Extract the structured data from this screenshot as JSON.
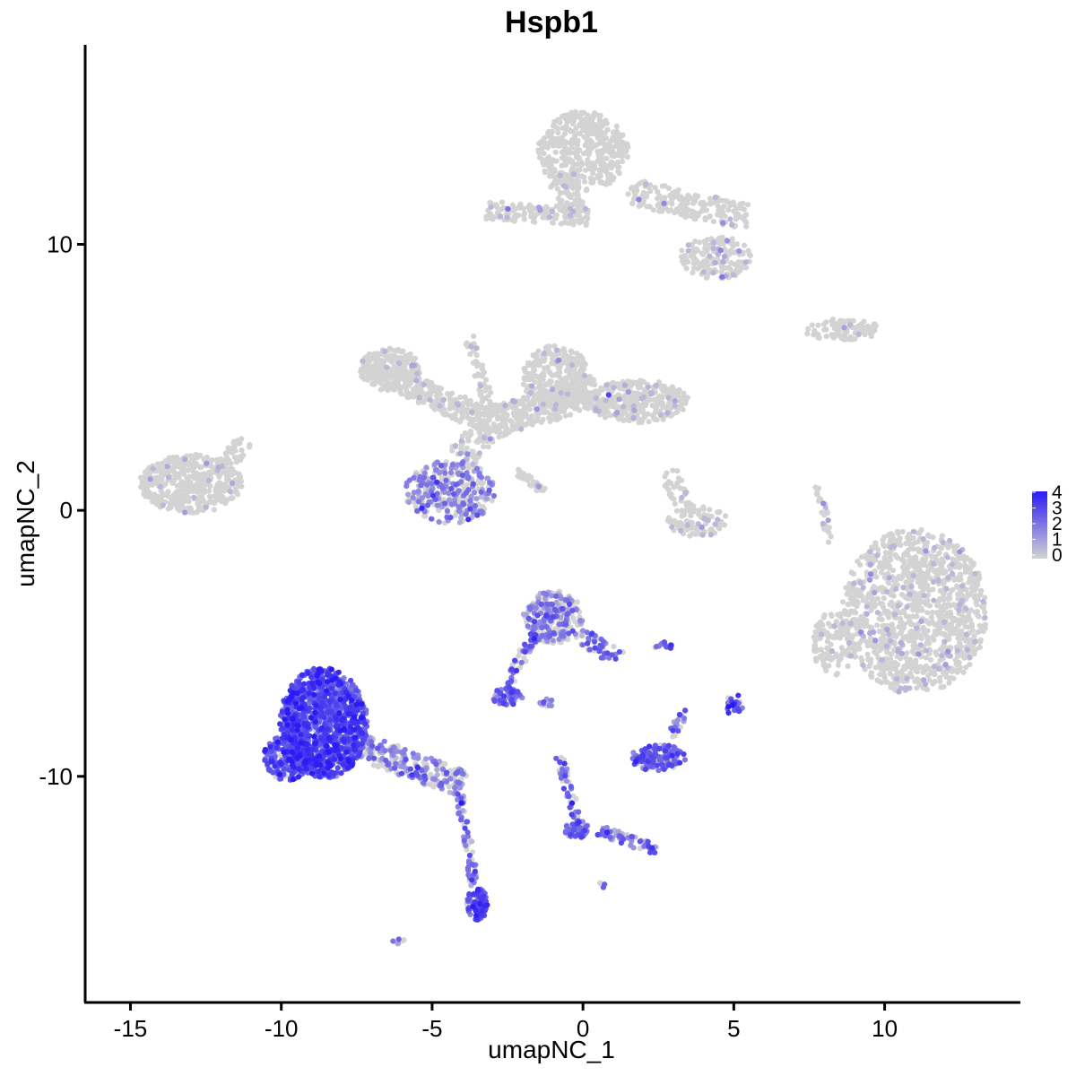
{
  "chart_data": {
    "type": "scatter",
    "title": "Hspb1",
    "xlabel": "umapNC_1",
    "ylabel": "umapNC_2",
    "xlim": [
      -16.5,
      14.5
    ],
    "ylim": [
      -18.5,
      17.5
    ],
    "x_ticks": [
      -15,
      -10,
      -5,
      0,
      5,
      10
    ],
    "x_tick_labels": [
      "-15",
      "-10",
      "-5",
      "0",
      "5",
      "10"
    ],
    "y_ticks": [
      -10,
      0,
      10
    ],
    "y_tick_labels": [
      "-10",
      "0",
      "10"
    ],
    "grid": false,
    "legend": {
      "position": "right",
      "type": "colorbar",
      "labels": [
        "4",
        "3",
        "2",
        "1",
        "0"
      ],
      "range": [
        0,
        4
      ],
      "low_color": "#d3d3d3",
      "high_color": "#2a1af5"
    },
    "clusters": [
      {
        "shape": "ellipse",
        "cx": -13.0,
        "cy": 1.0,
        "rx": 1.7,
        "ry": 1.1,
        "n": 420,
        "expr": 0.04
      },
      {
        "shape": "line",
        "x1": -12.0,
        "y1": 1.5,
        "x2": -11.2,
        "y2": 2.6,
        "width": 0.3,
        "n": 50,
        "expr": 0.02
      },
      {
        "shape": "ellipse",
        "cx": -6.4,
        "cy": 5.3,
        "rx": 1.0,
        "ry": 0.8,
        "n": 220,
        "expr": 0.05
      },
      {
        "shape": "line",
        "x1": -6.4,
        "y1": 5.0,
        "x2": -3.0,
        "y2": 3.3,
        "width": 0.45,
        "n": 250,
        "expr": 0.03
      },
      {
        "shape": "line",
        "x1": -3.0,
        "y1": 3.3,
        "x2": 0.5,
        "y2": 4.5,
        "width": 0.6,
        "n": 260,
        "expr": 0.03
      },
      {
        "shape": "ellipse",
        "cx": -0.9,
        "cy": 5.0,
        "rx": 1.1,
        "ry": 1.2,
        "n": 300,
        "expr": 0.05
      },
      {
        "shape": "ellipse",
        "cx": 1.8,
        "cy": 4.1,
        "rx": 1.7,
        "ry": 0.8,
        "n": 320,
        "expr": 0.08
      },
      {
        "shape": "line",
        "x1": -3.8,
        "y1": 6.5,
        "x2": -3.0,
        "y2": 3.5,
        "width": 0.2,
        "n": 60,
        "expr": 0.04
      },
      {
        "shape": "ellipse",
        "cx": -4.4,
        "cy": 0.7,
        "rx": 1.5,
        "ry": 1.2,
        "n": 320,
        "expr": 0.55
      },
      {
        "shape": "line",
        "x1": -4.0,
        "y1": 2.0,
        "x2": -3.1,
        "y2": 3.3,
        "width": 0.5,
        "n": 80,
        "expr": 0.15
      },
      {
        "shape": "line",
        "x1": -2.2,
        "y1": 1.5,
        "x2": -1.3,
        "y2": 0.7,
        "width": 0.15,
        "n": 30,
        "expr": 0.1
      },
      {
        "shape": "ellipse",
        "cx": 0.0,
        "cy": 13.5,
        "rx": 1.5,
        "ry": 1.5,
        "n": 420,
        "expr": 0.01
      },
      {
        "shape": "line",
        "x1": -0.8,
        "y1": 12.5,
        "x2": -0.1,
        "y2": 10.9,
        "width": 0.4,
        "n": 90,
        "expr": 0.02
      },
      {
        "shape": "line",
        "x1": -3.2,
        "y1": 11.3,
        "x2": 0.2,
        "y2": 11.0,
        "width": 0.35,
        "n": 140,
        "expr": 0.05
      },
      {
        "shape": "ellipse",
        "cx": 4.4,
        "cy": 9.5,
        "rx": 1.2,
        "ry": 0.8,
        "n": 160,
        "expr": 0.12
      },
      {
        "shape": "line",
        "x1": 1.5,
        "y1": 12.0,
        "x2": 5.5,
        "y2": 11.0,
        "width": 0.5,
        "n": 200,
        "expr": 0.04
      },
      {
        "shape": "ellipse",
        "cx": 8.6,
        "cy": 6.8,
        "rx": 1.3,
        "ry": 0.4,
        "n": 90,
        "expr": 0.05
      },
      {
        "shape": "ellipse",
        "cx": 3.8,
        "cy": -0.4,
        "rx": 1.0,
        "ry": 0.6,
        "n": 90,
        "expr": 0.12
      },
      {
        "shape": "line",
        "x1": 2.8,
        "y1": 1.5,
        "x2": 3.5,
        "y2": -0.2,
        "width": 0.3,
        "n": 40,
        "expr": 0.05
      },
      {
        "shape": "ellipse",
        "cx": 11.0,
        "cy": -3.8,
        "rx": 2.4,
        "ry": 3.1,
        "n": 1150,
        "expr": 0.08
      },
      {
        "shape": "ellipse",
        "cx": 8.3,
        "cy": -5.0,
        "rx": 0.7,
        "ry": 1.2,
        "n": 120,
        "expr": 0.05
      },
      {
        "shape": "line",
        "x1": 7.8,
        "y1": 0.9,
        "x2": 8.2,
        "y2": -1.2,
        "width": 0.12,
        "n": 25,
        "expr": 0.2
      },
      {
        "shape": "ellipse",
        "cx": -8.6,
        "cy": -8.0,
        "rx": 1.45,
        "ry": 2.1,
        "n": 1100,
        "expr": 0.92
      },
      {
        "shape": "ellipse",
        "cx": -9.8,
        "cy": -9.3,
        "rx": 0.8,
        "ry": 0.85,
        "n": 220,
        "expr": 0.9
      },
      {
        "shape": "line",
        "x1": -7.5,
        "y1": -8.8,
        "x2": -4.0,
        "y2": -10.3,
        "width": 0.5,
        "n": 240,
        "expr": 0.55
      },
      {
        "shape": "line",
        "x1": -4.1,
        "y1": -10.6,
        "x2": -3.6,
        "y2": -14.1,
        "width": 0.15,
        "n": 70,
        "expr": 0.7
      },
      {
        "shape": "ellipse",
        "cx": -3.5,
        "cy": -14.8,
        "rx": 0.35,
        "ry": 0.6,
        "n": 90,
        "expr": 0.9
      },
      {
        "shape": "ellipse",
        "cx": -1.0,
        "cy": -4.0,
        "rx": 1.0,
        "ry": 1.0,
        "n": 260,
        "expr": 0.55
      },
      {
        "shape": "line",
        "x1": -0.4,
        "y1": -4.5,
        "x2": 1.2,
        "y2": -5.6,
        "width": 0.3,
        "n": 50,
        "expr": 0.7
      },
      {
        "shape": "line",
        "x1": -1.6,
        "y1": -4.6,
        "x2": -2.5,
        "y2": -6.6,
        "width": 0.18,
        "n": 50,
        "expr": 0.7
      },
      {
        "shape": "ellipse",
        "cx": -2.5,
        "cy": -7.0,
        "rx": 0.5,
        "ry": 0.35,
        "n": 80,
        "expr": 0.75
      },
      {
        "shape": "ellipse",
        "cx": -1.2,
        "cy": -7.2,
        "rx": 0.3,
        "ry": 0.18,
        "n": 12,
        "expr": 0.6
      },
      {
        "shape": "ellipse",
        "cx": 2.7,
        "cy": -5.1,
        "rx": 0.35,
        "ry": 0.15,
        "n": 15,
        "expr": 0.7
      },
      {
        "shape": "ellipse",
        "cx": 2.5,
        "cy": -9.3,
        "rx": 0.9,
        "ry": 0.5,
        "n": 140,
        "expr": 0.75
      },
      {
        "shape": "line",
        "x1": 2.9,
        "y1": -8.5,
        "x2": 3.4,
        "y2": -7.5,
        "width": 0.15,
        "n": 20,
        "expr": 0.7
      },
      {
        "shape": "line",
        "x1": 0.5,
        "y1": -12.0,
        "x2": 2.5,
        "y2": -12.8,
        "width": 0.2,
        "n": 60,
        "expr": 0.75
      },
      {
        "shape": "line",
        "x1": -0.8,
        "y1": -9.3,
        "x2": -0.1,
        "y2": -11.9,
        "width": 0.15,
        "n": 45,
        "expr": 0.7
      },
      {
        "shape": "ellipse",
        "cx": -0.2,
        "cy": -12.0,
        "rx": 0.4,
        "ry": 0.35,
        "n": 50,
        "expr": 0.75
      },
      {
        "shape": "ellipse",
        "cx": 5.0,
        "cy": -7.3,
        "rx": 0.3,
        "ry": 0.4,
        "n": 25,
        "expr": 0.8
      },
      {
        "shape": "ellipse",
        "cx": 0.6,
        "cy": -14.1,
        "rx": 0.15,
        "ry": 0.1,
        "n": 5,
        "expr": 0.7
      },
      {
        "shape": "ellipse",
        "cx": -6.1,
        "cy": -16.2,
        "rx": 0.2,
        "ry": 0.1,
        "n": 6,
        "expr": 0.55
      }
    ]
  }
}
